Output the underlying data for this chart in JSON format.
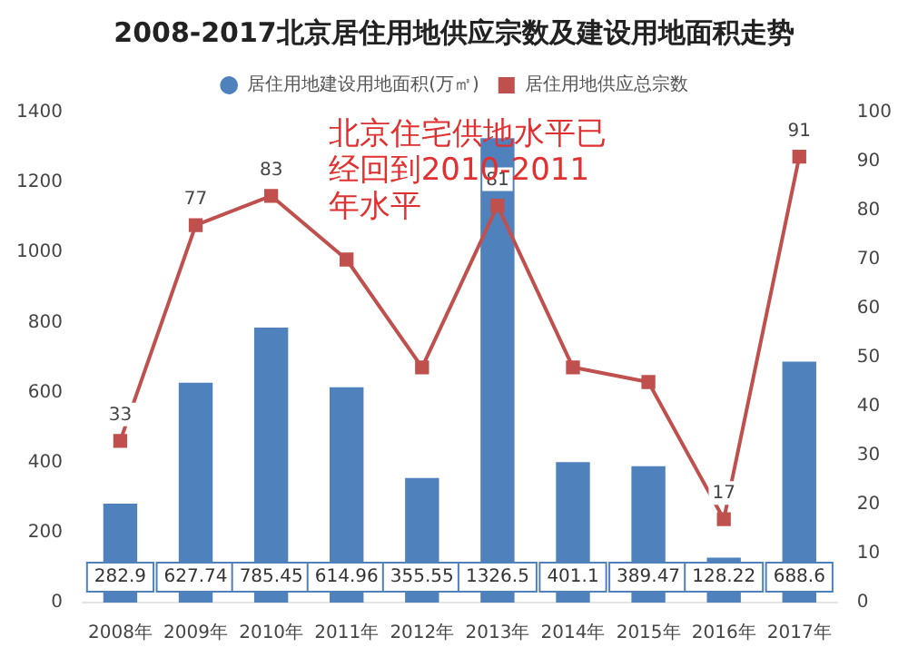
{
  "chart_data": {
    "type": "bar",
    "title": "2008-2017北京居住用地供应宗数及建设用地面积走势",
    "categories": [
      "2008年",
      "2009年",
      "2010年",
      "2011年",
      "2012年",
      "2013年",
      "2014年",
      "2015年",
      "2016年",
      "2017年"
    ],
    "series": [
      {
        "name": "居住用地建设用地面积(万㎡)",
        "color": "#4f81bd",
        "values": [
          282.9,
          627.74,
          785.45,
          614.96,
          355.55,
          1326.5,
          401.1,
          389.47,
          128.22,
          688.6
        ],
        "value_labels": [
          "282.9",
          "627.74",
          "785.45",
          "614.96",
          "355.55",
          "1326.5",
          "401.1",
          "389.47",
          "128.22",
          "688.6"
        ]
      },
      {
        "name": "居住用地供应总宗数",
        "type": "line",
        "axis": "y2",
        "color": "#c0504d",
        "values": [
          33,
          77,
          83,
          70,
          48,
          81,
          48,
          45,
          17,
          91
        ],
        "value_labels": [
          "33",
          "77",
          "83",
          null,
          null,
          "81",
          null,
          null,
          "17",
          "91"
        ]
      }
    ],
    "ylim": [
      0,
      1400
    ],
    "yticks": [
      0,
      200,
      400,
      600,
      800,
      1000,
      1200,
      1400
    ],
    "y2lim": [
      0,
      100
    ],
    "y2ticks": [
      0,
      10,
      20,
      30,
      40,
      50,
      60,
      70,
      80,
      90,
      100
    ],
    "annotations": [
      "北京住宅供地水平已经回到2010-2011年水平"
    ],
    "legend": "top",
    "marker": "square",
    "grid": false
  }
}
